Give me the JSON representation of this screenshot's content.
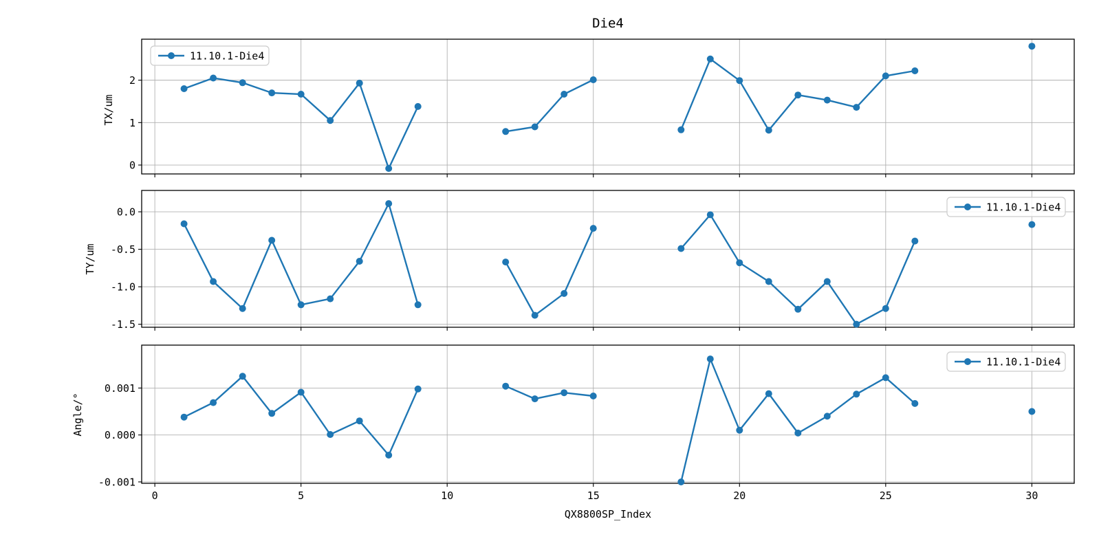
{
  "figure": {
    "title": "Die4"
  },
  "series_name": "11.10.1-Die4",
  "colors": {
    "line": "#1f77b4",
    "grid": "#b0b0b0",
    "frame": "#000000",
    "text": "#000000",
    "legend_border": "#cccccc",
    "background": "#ffffff"
  },
  "x_axis": {
    "label": "QX8800SP_Index",
    "ticks": [
      0,
      5,
      10,
      15,
      20,
      25,
      30
    ],
    "tick_labels": [
      "0",
      "5",
      "10",
      "15",
      "20",
      "25",
      "30"
    ],
    "xlim": [
      -0.45,
      31.45
    ]
  },
  "chart_data": [
    {
      "type": "line",
      "title": "Die4",
      "ylabel": "TX/um",
      "legend": "11.10.1-Die4",
      "legend_pos": "upper-left",
      "grid": true,
      "ylim": [
        -0.21,
        2.966
      ],
      "yticks": [
        0,
        1,
        2
      ],
      "ytick_labels": [
        "0",
        "1",
        "2"
      ],
      "x": [
        1,
        2,
        3,
        4,
        5,
        6,
        7,
        8,
        9,
        12,
        13,
        14,
        15,
        18,
        19,
        20,
        21,
        22,
        23,
        24,
        25,
        26,
        30
      ],
      "y": [
        1.8,
        2.05,
        1.94,
        1.7,
        1.67,
        1.05,
        1.93,
        -0.08,
        1.38,
        0.79,
        0.9,
        1.67,
        2.01,
        0.83,
        2.5,
        1.99,
        0.82,
        1.65,
        1.53,
        1.36,
        2.1,
        2.22,
        2.8
      ]
    },
    {
      "type": "line",
      "ylabel": "TY/um",
      "legend": "11.10.1-Die4",
      "legend_pos": "upper-right",
      "grid": true,
      "ylim": [
        -1.54,
        0.285
      ],
      "yticks": [
        0.0,
        -0.5,
        -1.0,
        -1.5
      ],
      "ytick_labels": [
        "0.0",
        "-0.5",
        "-1.0",
        "-1.5"
      ],
      "x": [
        1,
        2,
        3,
        4,
        5,
        6,
        7,
        8,
        9,
        12,
        13,
        14,
        15,
        18,
        19,
        20,
        21,
        22,
        23,
        24,
        25,
        26,
        30
      ],
      "y": [
        -0.16,
        -0.93,
        -1.29,
        -0.38,
        -1.24,
        -1.16,
        -0.66,
        0.11,
        -1.24,
        -0.67,
        -1.38,
        -1.09,
        -0.22,
        -0.49,
        -0.04,
        -0.68,
        -0.93,
        -1.3,
        -0.93,
        -1.5,
        -1.29,
        -0.39,
        -0.17
      ]
    },
    {
      "type": "line",
      "ylabel": "Angle/°",
      "legend": "11.10.1-Die4",
      "legend_pos": "upper-right",
      "grid": true,
      "ylim": [
        -0.00103,
        0.001914
      ],
      "yticks": [
        0.001,
        0.0,
        -0.001
      ],
      "ytick_labels": [
        "0.001",
        "0.000",
        "-0.001"
      ],
      "x": [
        1,
        2,
        3,
        4,
        5,
        6,
        7,
        8,
        9,
        12,
        13,
        14,
        15,
        18,
        19,
        20,
        21,
        22,
        23,
        24,
        25,
        26,
        30
      ],
      "y": [
        0.00038,
        0.00069,
        0.00125,
        0.00046,
        0.00091,
        1e-05,
        0.0003,
        -0.00043,
        0.00098,
        0.00104,
        0.00077,
        0.0009,
        0.00083,
        -0.001,
        0.00162,
        0.0001,
        0.00088,
        4e-05,
        0.0004,
        0.00087,
        0.00122,
        0.00067,
        0.0005
      ]
    }
  ]
}
